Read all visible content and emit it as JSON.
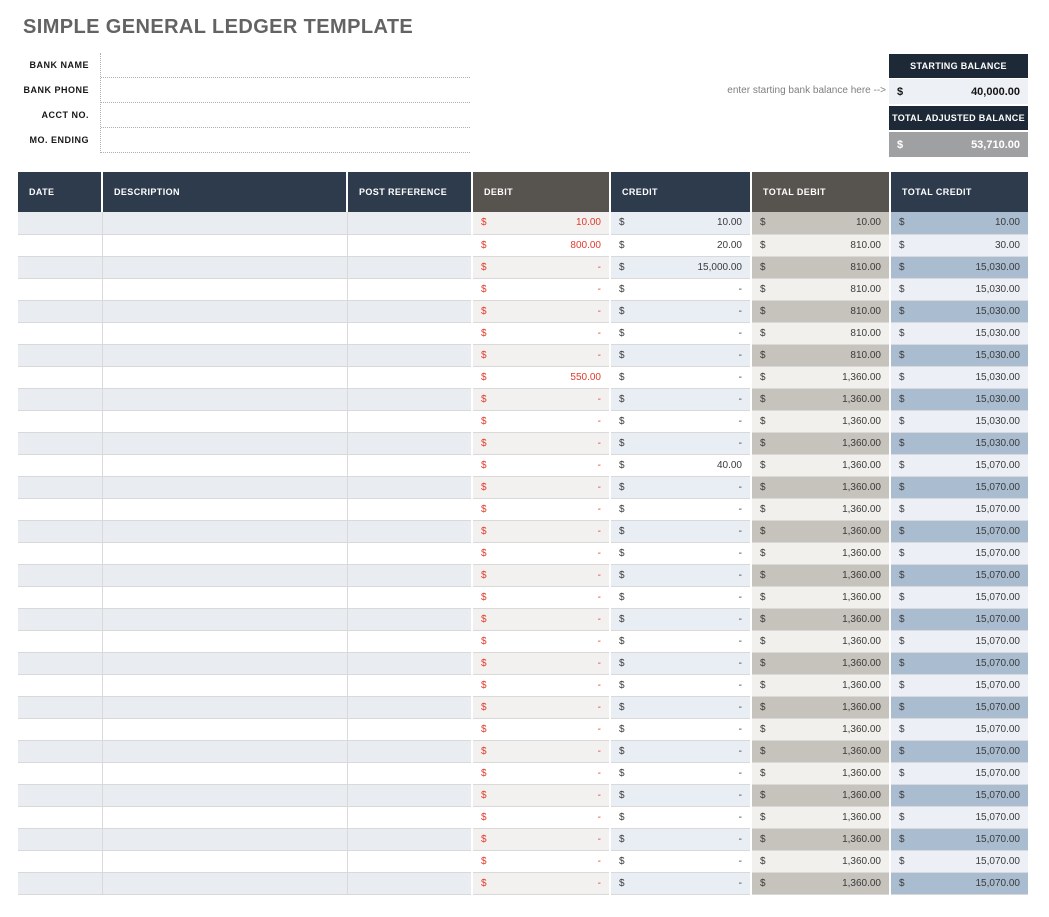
{
  "title": "SIMPLE GENERAL LEDGER TEMPLATE",
  "info_fields": [
    {
      "label": "BANK NAME",
      "value": ""
    },
    {
      "label": "BANK PHONE",
      "value": ""
    },
    {
      "label": "ACCT NO.",
      "value": ""
    },
    {
      "label": "MO. ENDING",
      "value": ""
    }
  ],
  "balance": {
    "note": "enter starting bank balance here -->",
    "currency": "$",
    "starting_label": "STARTING BALANCE",
    "starting_value": "40,000.00",
    "adjusted_label": "TOTAL ADJUSTED BALANCE",
    "adjusted_value": "53,710.00"
  },
  "colors": {
    "header_navy": "#2d3b4d",
    "header_gray": "#57534e",
    "balance_header_navy": "#1d2936",
    "adjusted_value_gray": "#9fa0a2",
    "debit_red": "#e23a2c",
    "stripe_blue_gray": "#e9edf2",
    "total_debit_stripe": "#c6c2bc",
    "total_credit_stripe": "#a9bcd0"
  },
  "table": {
    "currency": "$",
    "columns": [
      "DATE",
      "DESCRIPTION",
      "POST REFERENCE",
      "DEBIT",
      "CREDIT",
      "TOTAL DEBIT",
      "TOTAL CREDIT"
    ],
    "rows": [
      {
        "date": "",
        "description": "",
        "post_reference": "",
        "debit": "10.00",
        "credit": "10.00",
        "total_debit": "10.00",
        "total_credit": "10.00"
      },
      {
        "date": "",
        "description": "",
        "post_reference": "",
        "debit": "800.00",
        "credit": "20.00",
        "total_debit": "810.00",
        "total_credit": "30.00"
      },
      {
        "date": "",
        "description": "",
        "post_reference": "",
        "debit": "-",
        "credit": "15,000.00",
        "total_debit": "810.00",
        "total_credit": "15,030.00"
      },
      {
        "date": "",
        "description": "",
        "post_reference": "",
        "debit": "-",
        "credit": "-",
        "total_debit": "810.00",
        "total_credit": "15,030.00"
      },
      {
        "date": "",
        "description": "",
        "post_reference": "",
        "debit": "-",
        "credit": "-",
        "total_debit": "810.00",
        "total_credit": "15,030.00"
      },
      {
        "date": "",
        "description": "",
        "post_reference": "",
        "debit": "-",
        "credit": "-",
        "total_debit": "810.00",
        "total_credit": "15,030.00"
      },
      {
        "date": "",
        "description": "",
        "post_reference": "",
        "debit": "-",
        "credit": "-",
        "total_debit": "810.00",
        "total_credit": "15,030.00"
      },
      {
        "date": "",
        "description": "",
        "post_reference": "",
        "debit": "550.00",
        "credit": "-",
        "total_debit": "1,360.00",
        "total_credit": "15,030.00"
      },
      {
        "date": "",
        "description": "",
        "post_reference": "",
        "debit": "-",
        "credit": "-",
        "total_debit": "1,360.00",
        "total_credit": "15,030.00"
      },
      {
        "date": "",
        "description": "",
        "post_reference": "",
        "debit": "-",
        "credit": "-",
        "total_debit": "1,360.00",
        "total_credit": "15,030.00"
      },
      {
        "date": "",
        "description": "",
        "post_reference": "",
        "debit": "-",
        "credit": "-",
        "total_debit": "1,360.00",
        "total_credit": "15,030.00"
      },
      {
        "date": "",
        "description": "",
        "post_reference": "",
        "debit": "-",
        "credit": "40.00",
        "total_debit": "1,360.00",
        "total_credit": "15,070.00"
      },
      {
        "date": "",
        "description": "",
        "post_reference": "",
        "debit": "-",
        "credit": "-",
        "total_debit": "1,360.00",
        "total_credit": "15,070.00"
      },
      {
        "date": "",
        "description": "",
        "post_reference": "",
        "debit": "-",
        "credit": "-",
        "total_debit": "1,360.00",
        "total_credit": "15,070.00"
      },
      {
        "date": "",
        "description": "",
        "post_reference": "",
        "debit": "-",
        "credit": "-",
        "total_debit": "1,360.00",
        "total_credit": "15,070.00"
      },
      {
        "date": "",
        "description": "",
        "post_reference": "",
        "debit": "-",
        "credit": "-",
        "total_debit": "1,360.00",
        "total_credit": "15,070.00"
      },
      {
        "date": "",
        "description": "",
        "post_reference": "",
        "debit": "-",
        "credit": "-",
        "total_debit": "1,360.00",
        "total_credit": "15,070.00"
      },
      {
        "date": "",
        "description": "",
        "post_reference": "",
        "debit": "-",
        "credit": "-",
        "total_debit": "1,360.00",
        "total_credit": "15,070.00"
      },
      {
        "date": "",
        "description": "",
        "post_reference": "",
        "debit": "-",
        "credit": "-",
        "total_debit": "1,360.00",
        "total_credit": "15,070.00"
      },
      {
        "date": "",
        "description": "",
        "post_reference": "",
        "debit": "-",
        "credit": "-",
        "total_debit": "1,360.00",
        "total_credit": "15,070.00"
      },
      {
        "date": "",
        "description": "",
        "post_reference": "",
        "debit": "-",
        "credit": "-",
        "total_debit": "1,360.00",
        "total_credit": "15,070.00"
      },
      {
        "date": "",
        "description": "",
        "post_reference": "",
        "debit": "-",
        "credit": "-",
        "total_debit": "1,360.00",
        "total_credit": "15,070.00"
      },
      {
        "date": "",
        "description": "",
        "post_reference": "",
        "debit": "-",
        "credit": "-",
        "total_debit": "1,360.00",
        "total_credit": "15,070.00"
      },
      {
        "date": "",
        "description": "",
        "post_reference": "",
        "debit": "-",
        "credit": "-",
        "total_debit": "1,360.00",
        "total_credit": "15,070.00"
      },
      {
        "date": "",
        "description": "",
        "post_reference": "",
        "debit": "-",
        "credit": "-",
        "total_debit": "1,360.00",
        "total_credit": "15,070.00"
      },
      {
        "date": "",
        "description": "",
        "post_reference": "",
        "debit": "-",
        "credit": "-",
        "total_debit": "1,360.00",
        "total_credit": "15,070.00"
      },
      {
        "date": "",
        "description": "",
        "post_reference": "",
        "debit": "-",
        "credit": "-",
        "total_debit": "1,360.00",
        "total_credit": "15,070.00"
      },
      {
        "date": "",
        "description": "",
        "post_reference": "",
        "debit": "-",
        "credit": "-",
        "total_debit": "1,360.00",
        "total_credit": "15,070.00"
      },
      {
        "date": "",
        "description": "",
        "post_reference": "",
        "debit": "-",
        "credit": "-",
        "total_debit": "1,360.00",
        "total_credit": "15,070.00"
      },
      {
        "date": "",
        "description": "",
        "post_reference": "",
        "debit": "-",
        "credit": "-",
        "total_debit": "1,360.00",
        "total_credit": "15,070.00"
      },
      {
        "date": "",
        "description": "",
        "post_reference": "",
        "debit": "-",
        "credit": "-",
        "total_debit": "1,360.00",
        "total_credit": "15,070.00"
      }
    ]
  }
}
